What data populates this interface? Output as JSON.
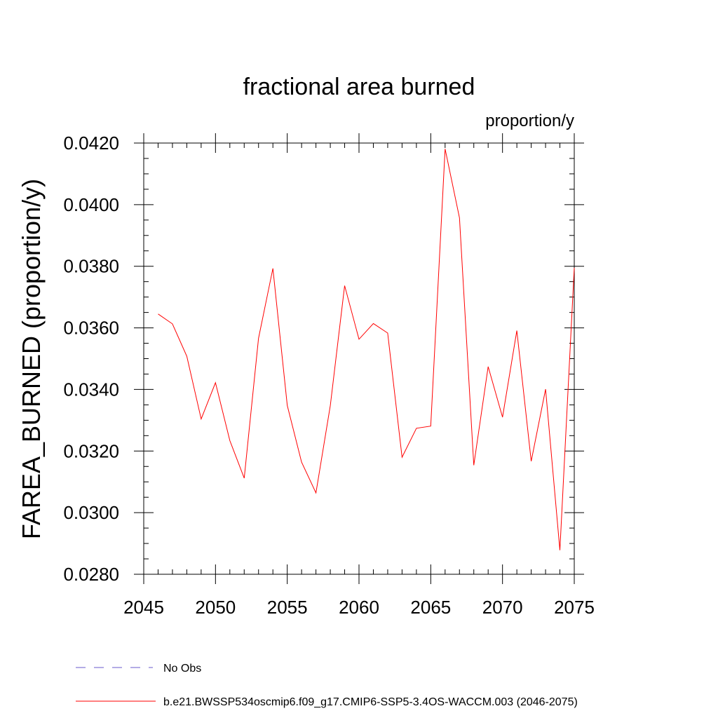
{
  "chart_data": {
    "type": "line",
    "title": "fractional area burned",
    "units_label": "proportion/y",
    "xlabel": "",
    "ylabel": "FAREA_BURNED  (proportion/y)",
    "xlim": [
      2045,
      2075
    ],
    "ylim": [
      0.028,
      0.042
    ],
    "x_ticks": [
      2045,
      2050,
      2055,
      2060,
      2065,
      2070,
      2075
    ],
    "y_ticks": [
      "0.0280",
      "0.0300",
      "0.0320",
      "0.0340",
      "0.0360",
      "0.0380",
      "0.0400",
      "0.0420"
    ],
    "series": [
      {
        "name": "b.e21.BWSSP534oscmip6.f09_g17.CMIP6-SSP5-3.4OS-WACCM.003 (2046-2075)",
        "color": "#ff0000",
        "style": "solid",
        "x": [
          2046,
          2047,
          2048,
          2049,
          2050,
          2051,
          2052,
          2053,
          2054,
          2055,
          2056,
          2057,
          2058,
          2059,
          2060,
          2061,
          2062,
          2063,
          2064,
          2065,
          2066,
          2067,
          2068,
          2069,
          2070,
          2071,
          2072,
          2073,
          2074,
          2075
        ],
        "values": [
          0.03645,
          0.03613,
          0.03508,
          0.03304,
          0.03422,
          0.03234,
          0.03112,
          0.03566,
          0.03793,
          0.03348,
          0.03164,
          0.03064,
          0.03348,
          0.03737,
          0.03563,
          0.03614,
          0.03583,
          0.0318,
          0.03274,
          0.03281,
          0.04181,
          0.03957,
          0.03154,
          0.03474,
          0.0331,
          0.03591,
          0.03167,
          0.03401,
          0.02878,
          0.03795
        ]
      }
    ],
    "legend": [
      {
        "label": "No Obs",
        "color": "#6a5acd",
        "style": "dashed"
      },
      {
        "label": "b.e21.BWSSP534oscmip6.f09_g17.CMIP6-SSP5-3.4OS-WACCM.003 (2046-2075)",
        "color": "#ff0000",
        "style": "solid"
      }
    ]
  }
}
